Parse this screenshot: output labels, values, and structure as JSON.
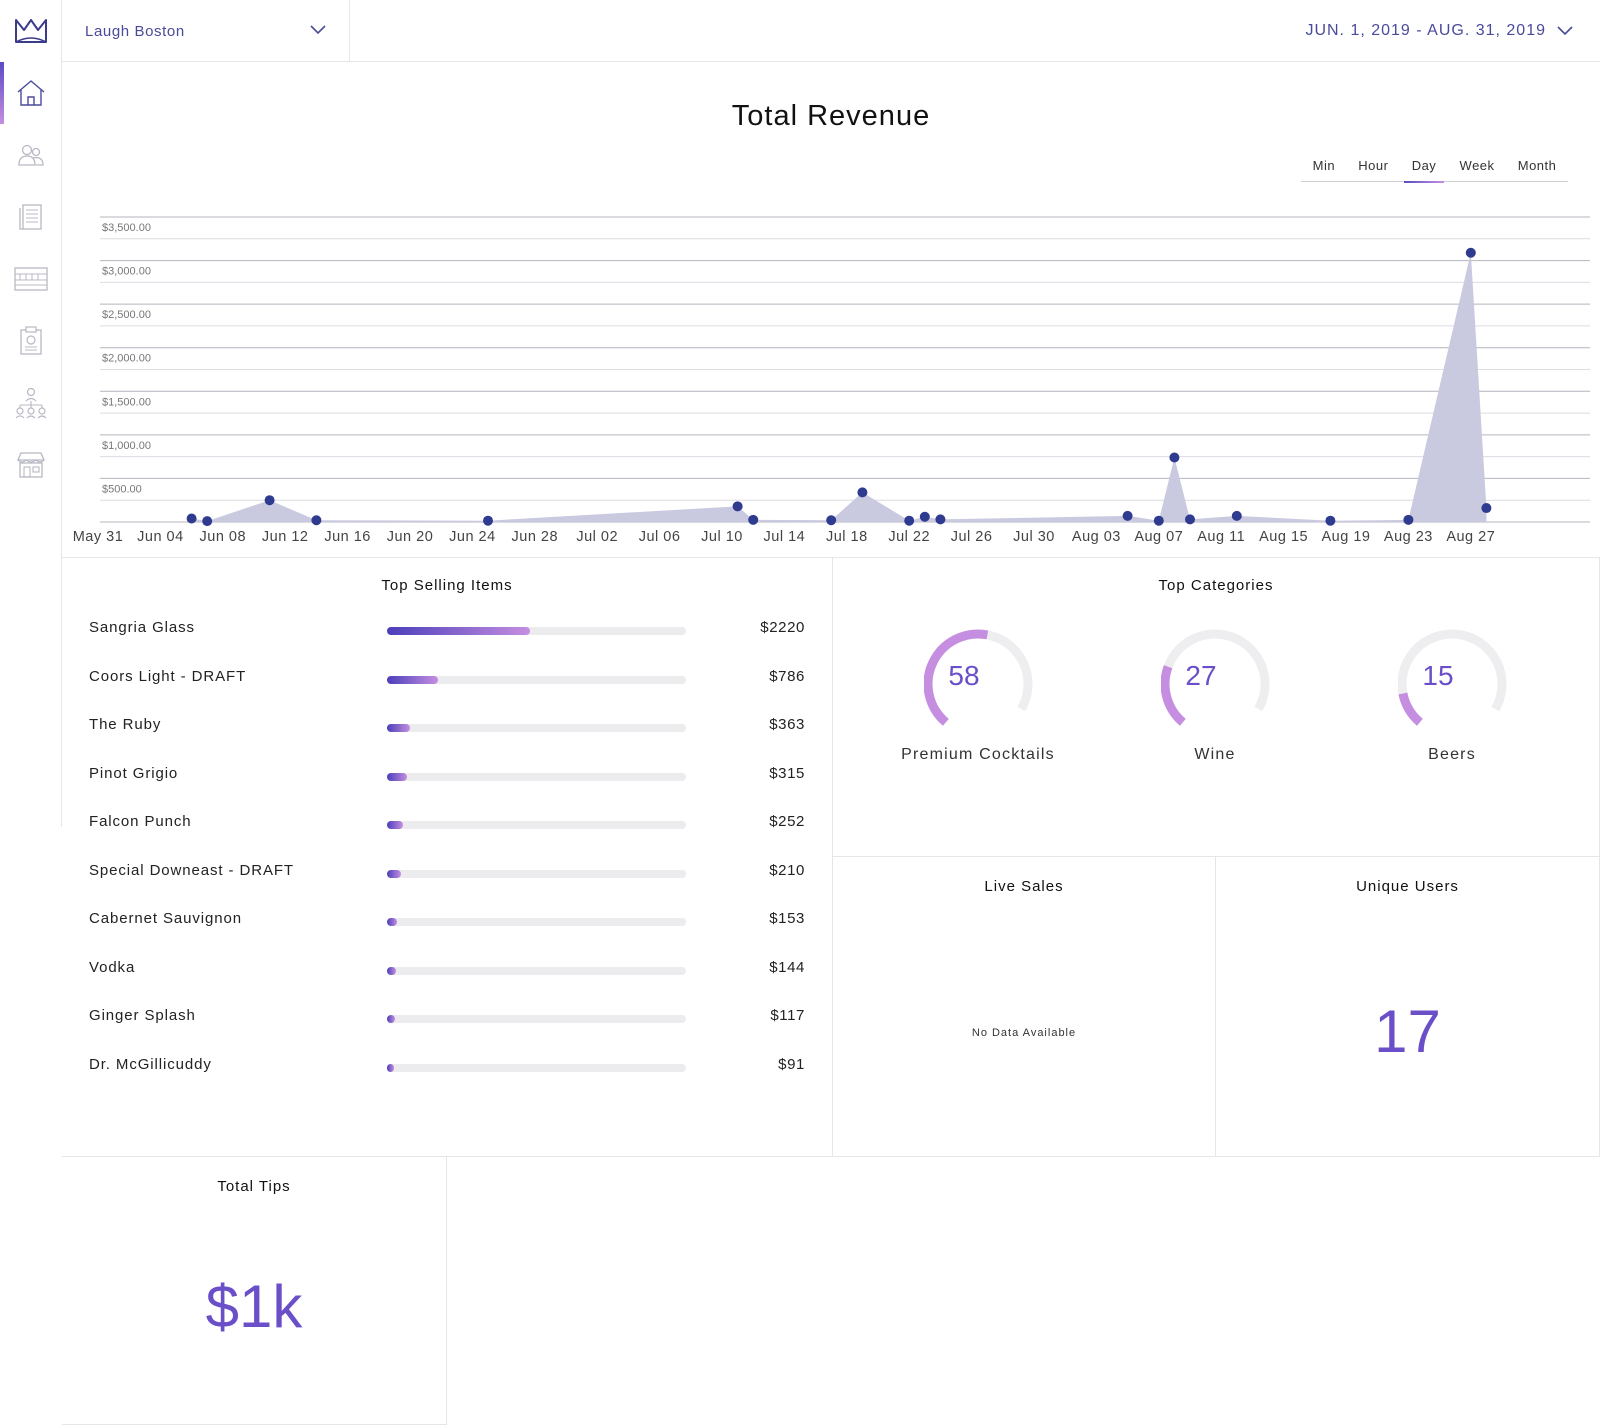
{
  "header": {
    "venue": "Laugh Boston",
    "date_range": "JUN. 1, 2019 - AUG. 31, 2019"
  },
  "sidebar": {
    "items": [
      {
        "icon": "home-icon",
        "active": true
      },
      {
        "icon": "users-icon",
        "active": false
      },
      {
        "icon": "menu-book-icon",
        "active": false
      },
      {
        "icon": "counter-icon",
        "active": false
      },
      {
        "icon": "report-icon",
        "active": false
      },
      {
        "icon": "org-chart-icon",
        "active": false
      },
      {
        "icon": "store-icon",
        "active": false
      }
    ]
  },
  "revenue": {
    "title": "Total Revenue",
    "granularity_tabs": [
      "Min",
      "Hour",
      "Day",
      "Week",
      "Month"
    ],
    "active_tab": "Day"
  },
  "chart_data": {
    "type": "area",
    "title": "Total Revenue",
    "x_ticks": [
      "May 31",
      "Jun 04",
      "Jun 08",
      "Jun 12",
      "Jun 16",
      "Jun 20",
      "Jun 24",
      "Jun 28",
      "Jul 02",
      "Jul 06",
      "Jul 10",
      "Jul 14",
      "Jul 18",
      "Jul 22",
      "Jul 26",
      "Jul 30",
      "Aug 03",
      "Aug 07",
      "Aug 11",
      "Aug 15",
      "Aug 19",
      "Aug 23",
      "Aug 27"
    ],
    "y_ticks": [
      "$500.00",
      "$1,000.00",
      "$1,500.00",
      "$2,000.00",
      "$2,500.00",
      "$3,000.00",
      "$3,500.00"
    ],
    "ylim": [
      0,
      3500
    ],
    "x_start": "2019-05-31",
    "points": [
      {
        "date": "2019-06-06",
        "value": 40
      },
      {
        "date": "2019-06-07",
        "value": 10
      },
      {
        "date": "2019-06-11",
        "value": 250
      },
      {
        "date": "2019-06-14",
        "value": 20
      },
      {
        "date": "2019-06-25",
        "value": 15
      },
      {
        "date": "2019-07-11",
        "value": 180
      },
      {
        "date": "2019-07-12",
        "value": 25
      },
      {
        "date": "2019-07-17",
        "value": 20
      },
      {
        "date": "2019-07-19",
        "value": 340
      },
      {
        "date": "2019-07-22",
        "value": 15
      },
      {
        "date": "2019-07-23",
        "value": 60
      },
      {
        "date": "2019-07-24",
        "value": 30
      },
      {
        "date": "2019-08-05",
        "value": 70
      },
      {
        "date": "2019-08-07",
        "value": 15
      },
      {
        "date": "2019-08-08",
        "value": 740
      },
      {
        "date": "2019-08-09",
        "value": 30
      },
      {
        "date": "2019-08-12",
        "value": 70
      },
      {
        "date": "2019-08-18",
        "value": 15
      },
      {
        "date": "2019-08-23",
        "value": 25
      },
      {
        "date": "2019-08-27",
        "value": 3090
      },
      {
        "date": "2019-08-28",
        "value": 160
      }
    ],
    "colors": {
      "area": "#c9c9e0",
      "point": "#2f3b8f",
      "grid": "#c8c8d0"
    }
  },
  "top_selling": {
    "title": "Top Selling Items",
    "items": [
      {
        "name": "Sangria Glass",
        "value": "$2220",
        "amount": 2220
      },
      {
        "name": "Coors Light - DRAFT",
        "value": "$786",
        "amount": 786
      },
      {
        "name": "The Ruby",
        "value": "$363",
        "amount": 363
      },
      {
        "name": "Pinot Grigio",
        "value": "$315",
        "amount": 315
      },
      {
        "name": "Falcon Punch",
        "value": "$252",
        "amount": 252
      },
      {
        "name": "Special Downeast - DRAFT",
        "value": "$210",
        "amount": 210
      },
      {
        "name": "Cabernet Sauvignon",
        "value": "$153",
        "amount": 153
      },
      {
        "name": "Vodka",
        "value": "$144",
        "amount": 144
      },
      {
        "name": "Ginger Splash",
        "value": "$117",
        "amount": 117
      },
      {
        "name": "Dr. McGillicuddy",
        "value": "$91",
        "amount": 91
      }
    ],
    "max_amount": 4650
  },
  "top_categories": {
    "title": "Top Categories",
    "items": [
      {
        "value": "58",
        "label": "Premium Cocktails",
        "fraction": 0.58
      },
      {
        "value": "27",
        "label": "Wine",
        "fraction": 0.27
      },
      {
        "value": "15",
        "label": "Beers",
        "fraction": 0.15
      }
    ]
  },
  "live_sales": {
    "title": "Live Sales",
    "empty_text": "No Data Available"
  },
  "unique_users": {
    "title": "Unique Users",
    "value": "17"
  },
  "total_tips": {
    "title": "Total Tips",
    "value": "$1k"
  },
  "accent": {
    "primary": "#6a4fc8",
    "gradient_start": "#4a3fba",
    "gradient_end": "#c58ee0"
  }
}
